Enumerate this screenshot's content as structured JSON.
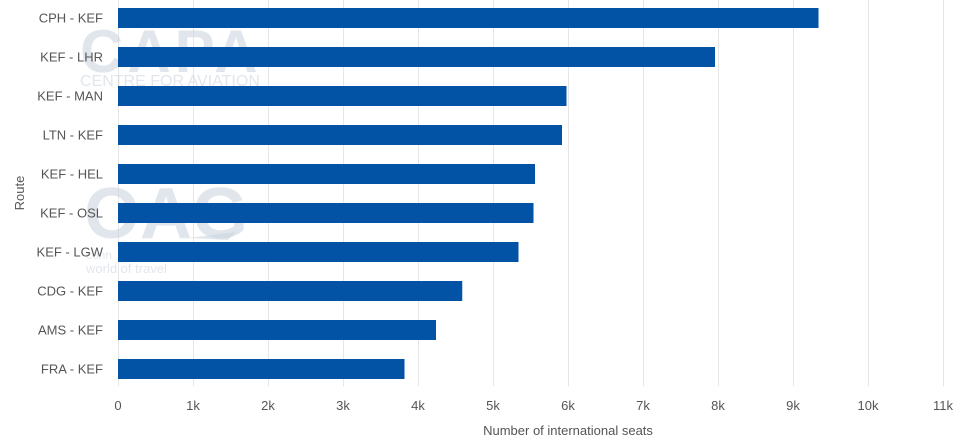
{
  "chart_data": {
    "type": "bar",
    "orientation": "horizontal",
    "categories": [
      "CPH - KEF",
      "KEF - LHR",
      "KEF - MAN",
      "LTN - KEF",
      "KEF - HEL",
      "KEF - OSL",
      "KEF - LGW",
      "CDG - KEF",
      "AMS - KEF",
      "FRA - KEF"
    ],
    "values": [
      9340,
      7960,
      5980,
      5920,
      5560,
      5540,
      5340,
      4590,
      4240,
      3820
    ],
    "xlabel": "Number of international seats",
    "ylabel": "Route",
    "xlim": [
      0,
      11000
    ],
    "xticks": [
      0,
      1000,
      2000,
      3000,
      4000,
      5000,
      6000,
      7000,
      8000,
      9000,
      10000,
      11000
    ],
    "xtick_labels": [
      "0",
      "1k",
      "2k",
      "3k",
      "4k",
      "5k",
      "6k",
      "7k",
      "8k",
      "9k",
      "10k",
      "11k"
    ],
    "grid": "vertical",
    "bar_color": "#0252a5",
    "grid_color": "#e6e6e6"
  },
  "watermarks": {
    "capa_logo": "CAPA",
    "capa_tagline": "CENTRE FOR AVIATION",
    "oag_logo": "OAG",
    "oag_tagline_1": "conn",
    "oag_tagline_2": "world of travel"
  }
}
